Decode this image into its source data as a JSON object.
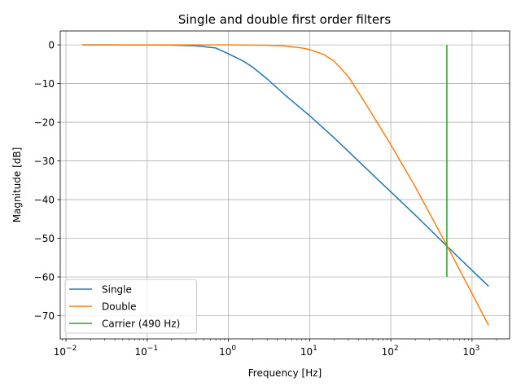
{
  "chart_data": {
    "type": "line",
    "title": "Single and double first order filters",
    "xlabel": "Frequency [Hz]",
    "ylabel": "Magnitude [dB]",
    "xscale": "log",
    "xlim": [
      0.0085,
      2900
    ],
    "ylim": [
      -76,
      3.6
    ],
    "grid": true,
    "legend_position": "lower-left",
    "xticks": [
      {
        "value": 0.01,
        "base": "10",
        "exp": "−2"
      },
      {
        "value": 0.1,
        "base": "10",
        "exp": "−1"
      },
      {
        "value": 1,
        "base": "10",
        "exp": "0"
      },
      {
        "value": 10,
        "base": "10",
        "exp": "1"
      },
      {
        "value": 100,
        "base": "10",
        "exp": "2"
      },
      {
        "value": 1000,
        "base": "10",
        "exp": "3"
      }
    ],
    "yticks": [
      {
        "value": 0,
        "label": "0"
      },
      {
        "value": -10,
        "label": "−10"
      },
      {
        "value": -20,
        "label": "−20"
      },
      {
        "value": -30,
        "label": "−30"
      },
      {
        "value": -40,
        "label": "−40"
      },
      {
        "value": -50,
        "label": "−50"
      },
      {
        "value": -60,
        "label": "−60"
      },
      {
        "value": -70,
        "label": "−70"
      }
    ],
    "series": [
      {
        "name": "Single",
        "color": "#1f77b4",
        "x": [
          0.0159,
          0.05,
          0.1,
          0.2,
          0.4,
          0.7,
          1,
          1.5,
          2,
          3,
          5,
          10,
          20,
          50,
          100,
          200,
          500,
          1000,
          1600
        ],
        "y": [
          0,
          -0.02,
          -0.02,
          -0.06,
          -0.25,
          -0.8,
          -2.3,
          -4.1,
          -5.8,
          -8.8,
          -13,
          -18.3,
          -24,
          -32,
          -38,
          -44,
          -52.2,
          -58.3,
          -62.4
        ]
      },
      {
        "name": "Double",
        "color": "#ff7f0e",
        "x": [
          0.0159,
          0.1,
          0.5,
          1,
          2,
          3,
          5,
          8,
          10,
          15,
          20,
          30,
          50,
          80,
          100,
          200,
          500,
          1000,
          1600
        ],
        "y": [
          0,
          0,
          0,
          0,
          -0.05,
          -0.1,
          -0.3,
          -0.8,
          -1.2,
          -2.5,
          -4.2,
          -8.2,
          -15.5,
          -22.5,
          -25.8,
          -36.7,
          -52.2,
          -64.3,
          -72.5
        ]
      },
      {
        "name": "Carrier (490 Hz)",
        "color": "#2ca02c",
        "x": [
          490,
          490
        ],
        "y": [
          0,
          -60
        ]
      }
    ]
  }
}
